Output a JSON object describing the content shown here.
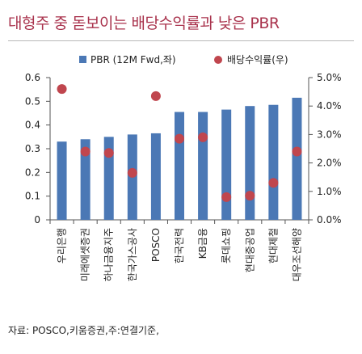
{
  "header": {
    "title": "대형주 중 돋보이는 배당수익률과 낮은 PBR"
  },
  "footer": {
    "source": "자료: POSCO,키움증권,주:연결기준,"
  },
  "chart_data": {
    "type": "bar",
    "categories": [
      "우리은행",
      "미래에셋증권",
      "하나금융지주",
      "한국가스공사",
      "POSCO",
      "한국전력",
      "KB금융",
      "롯데쇼핑",
      "현대중공업",
      "현대제철",
      "대우조선해양"
    ],
    "series": [
      {
        "name": "PBR (12M Fwd,좌)",
        "kind": "bar",
        "axis": "left",
        "color": "#4b78b5",
        "values": [
          0.33,
          0.34,
          0.35,
          0.36,
          0.365,
          0.455,
          0.455,
          0.465,
          0.48,
          0.485,
          0.515
        ]
      },
      {
        "name": "배당수익률(우)",
        "kind": "scatter",
        "axis": "right",
        "color": "#c0464e",
        "values": [
          4.6,
          2.4,
          2.35,
          1.65,
          4.35,
          2.85,
          2.9,
          0.8,
          0.85,
          1.3,
          2.4
        ]
      }
    ],
    "y_left": {
      "ylim": [
        0,
        0.6
      ],
      "ticks": [
        "0",
        "0.1",
        "0.2",
        "0.3",
        "0.4",
        "0.5",
        "0.6"
      ]
    },
    "y_right": {
      "ylim": [
        0,
        5.0
      ],
      "ticks": [
        "0.0%",
        "1.0%",
        "2.0%",
        "3.0%",
        "4.0%",
        "5.0%"
      ]
    },
    "legend": "top-center",
    "grid": false
  }
}
